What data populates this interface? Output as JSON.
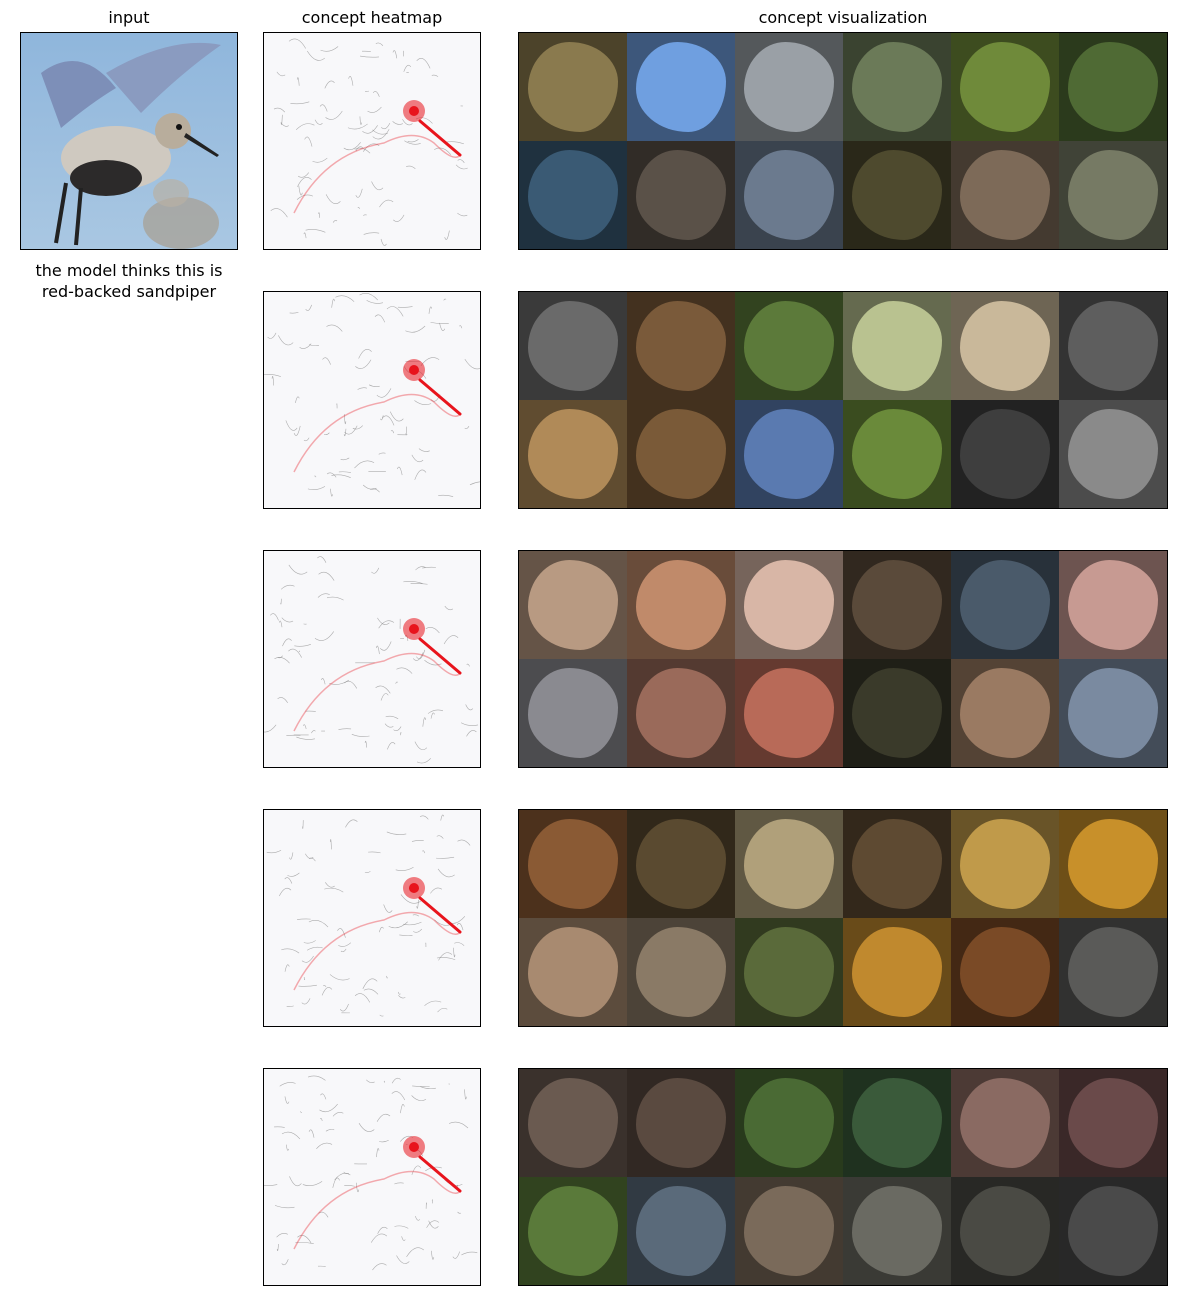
{
  "headers": {
    "input": "input",
    "heatmap": "concept heatmap",
    "visualization": "concept visualization"
  },
  "caption": {
    "line1": "the model thinks this is",
    "line2": "red-backed sandpiper"
  },
  "colors": {
    "heat_red": "#e8141c",
    "edge_gray": "#8a8a8a",
    "sky_blue": "#8fb6dc"
  },
  "concept_rows": [
    {
      "tile_colors": [
        [
          "#8a7a4e",
          "#6f9fe0",
          "#9aa0a6",
          "#6b7a58",
          "#6f8a3a",
          "#4f6a34"
        ],
        [
          "#3a5a74",
          "#5a5148",
          "#6b7a8e",
          "#4e4a2e",
          "#7d6a58",
          "#767a64"
        ]
      ]
    },
    {
      "tile_colors": [
        [
          "#6a6a6a",
          "#7a5a3a",
          "#5c7a3a",
          "#b9c290",
          "#c9b89a",
          "#5e5e5e"
        ],
        [
          "#b08a58",
          "#7a5a38",
          "#5a7ab0",
          "#6a8a3a",
          "#3e3e3e",
          "#8a8a8a"
        ]
      ]
    },
    {
      "tile_colors": [
        [
          "#b89a82",
          "#c08a6a",
          "#d8b6a6",
          "#5a4a3a",
          "#4a5a6a",
          "#c79a92"
        ],
        [
          "#8a8a90",
          "#9a6a5a",
          "#b86a58",
          "#3a3a2a",
          "#9a7a62",
          "#7a8aa0"
        ]
      ]
    },
    {
      "tile_colors": [
        [
          "#8a5a34",
          "#5a4a30",
          "#b0a07a",
          "#5e4a32",
          "#c09a4a",
          "#c8902a"
        ],
        [
          "#a88a70",
          "#8a7a66",
          "#5a6a3a",
          "#c0892e",
          "#7a4a26",
          "#5a5a58"
        ]
      ]
    },
    {
      "tile_colors": [
        [
          "#6a5a50",
          "#5a4a40",
          "#4a6a34",
          "#3a5a3a",
          "#8a6a62",
          "#6a4a4a"
        ],
        [
          "#5a7a3a",
          "#5a6a7a",
          "#7a6a5a",
          "#6a6a62",
          "#4a4a44",
          "#4a4a4a"
        ]
      ]
    }
  ]
}
